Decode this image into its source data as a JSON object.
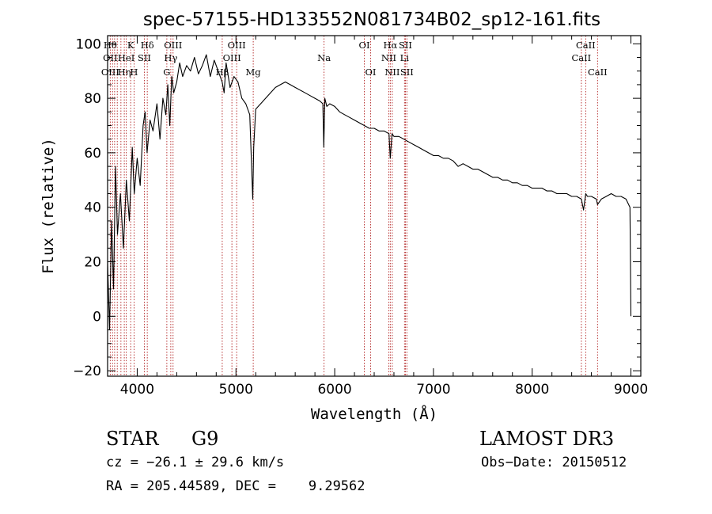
{
  "chart_data": {
    "type": "line",
    "title": "spec-57155-HD133552N081734B02_sp12-161.fits",
    "xlabel": "Wavelength (Å)",
    "ylabel": "Flux (relative)",
    "xlim": [
      3700,
      9100
    ],
    "ylim": [
      -22,
      103
    ],
    "xticks": [
      4000,
      5000,
      6000,
      7000,
      8000,
      9000
    ],
    "yticks": [
      -20,
      0,
      20,
      40,
      60,
      80,
      100
    ],
    "series": [
      {
        "name": "spectrum",
        "x": [
          3700,
          3720,
          3740,
          3760,
          3780,
          3800,
          3830,
          3860,
          3890,
          3920,
          3950,
          3970,
          4000,
          4030,
          4060,
          4080,
          4100,
          4130,
          4160,
          4200,
          4230,
          4260,
          4290,
          4310,
          4330,
          4350,
          4370,
          4400,
          4430,
          4460,
          4500,
          4540,
          4580,
          4620,
          4660,
          4700,
          4740,
          4780,
          4820,
          4860,
          4880,
          4900,
          4940,
          4980,
          5020,
          5060,
          5100,
          5140,
          5170,
          5180,
          5200,
          5250,
          5300,
          5350,
          5400,
          5450,
          5500,
          5550,
          5600,
          5650,
          5700,
          5750,
          5800,
          5850,
          5880,
          5890,
          5900,
          5920,
          5950,
          6000,
          6050,
          6100,
          6150,
          6200,
          6250,
          6300,
          6350,
          6400,
          6450,
          6500,
          6550,
          6563,
          6580,
          6600,
          6650,
          6700,
          6750,
          6800,
          6850,
          6900,
          6950,
          7000,
          7050,
          7100,
          7150,
          7200,
          7250,
          7300,
          7350,
          7400,
          7450,
          7500,
          7550,
          7600,
          7650,
          7700,
          7750,
          7800,
          7850,
          7900,
          7950,
          8000,
          8050,
          8100,
          8150,
          8200,
          8250,
          8300,
          8350,
          8400,
          8450,
          8498,
          8520,
          8542,
          8560,
          8600,
          8650,
          8662,
          8700,
          8750,
          8800,
          8850,
          8900,
          8950,
          8990,
          9000
        ],
        "values": [
          20,
          -5,
          35,
          10,
          55,
          30,
          45,
          25,
          50,
          35,
          62,
          45,
          58,
          48,
          70,
          75,
          60,
          72,
          68,
          78,
          65,
          80,
          74,
          85,
          70,
          88,
          82,
          86,
          93,
          88,
          92,
          90,
          95,
          89,
          92,
          96,
          88,
          94,
          90,
          86,
          82,
          93,
          84,
          88,
          86,
          80,
          78,
          74,
          43,
          62,
          76,
          78,
          80,
          82,
          84,
          85,
          86,
          85,
          84,
          83,
          82,
          81,
          80,
          79,
          78,
          62,
          80,
          77,
          78,
          77,
          75,
          74,
          73,
          72,
          71,
          70,
          69,
          69,
          68,
          68,
          67,
          58,
          67,
          66,
          66,
          65,
          64,
          63,
          62,
          61,
          60,
          59,
          59,
          58,
          58,
          57,
          55,
          56,
          55,
          54,
          54,
          53,
          52,
          51,
          51,
          50,
          50,
          49,
          49,
          48,
          48,
          47,
          47,
          47,
          46,
          46,
          45,
          45,
          45,
          44,
          44,
          43,
          39,
          45,
          44,
          44,
          43,
          41,
          43,
          44,
          45,
          44,
          44,
          43,
          40,
          0
        ]
      }
    ],
    "line_markers": [
      {
        "x": 3727,
        "upper": "Hθ",
        "mid": "OII",
        "lower": "OIII"
      },
      {
        "x": 3750,
        "upper": "",
        "mid": "",
        "lower": ""
      },
      {
        "x": 3771,
        "upper": "",
        "mid": "",
        "lower": ""
      },
      {
        "x": 3798,
        "upper": "",
        "mid": "",
        "lower": ""
      },
      {
        "x": 3835,
        "upper": "",
        "mid": "",
        "lower": ""
      },
      {
        "x": 3869,
        "upper": "",
        "mid": "",
        "lower": "Hη"
      },
      {
        "x": 3889,
        "upper": "",
        "mid": "HeI",
        "lower": ""
      },
      {
        "x": 3934,
        "upper": "K",
        "mid": "",
        "lower": ""
      },
      {
        "x": 3968,
        "upper": "",
        "mid": "",
        "lower": "H"
      },
      {
        "x": 4072,
        "upper": "",
        "mid": "SII",
        "lower": ""
      },
      {
        "x": 4102,
        "upper": "Hδ",
        "mid": "",
        "lower": ""
      },
      {
        "x": 4300,
        "upper": "",
        "mid": "",
        "lower": "G"
      },
      {
        "x": 4340,
        "upper": "",
        "mid": "Hγ",
        "lower": ""
      },
      {
        "x": 4363,
        "upper": "OIII",
        "mid": "",
        "lower": ""
      },
      {
        "x": 4861,
        "upper": "",
        "mid": "",
        "lower": "Hβ"
      },
      {
        "x": 4959,
        "upper": "",
        "mid": "OIII",
        "lower": ""
      },
      {
        "x": 5007,
        "upper": "OIII",
        "mid": "",
        "lower": ""
      },
      {
        "x": 5175,
        "upper": "",
        "mid": "",
        "lower": "Mg"
      },
      {
        "x": 5892,
        "upper": "",
        "mid": "Na",
        "lower": ""
      },
      {
        "x": 6300,
        "upper": "OI",
        "mid": "",
        "lower": ""
      },
      {
        "x": 6364,
        "upper": "",
        "mid": "",
        "lower": "OI"
      },
      {
        "x": 6548,
        "upper": "",
        "mid": "NII",
        "lower": ""
      },
      {
        "x": 6563,
        "upper": "Hα",
        "mid": "",
        "lower": ""
      },
      {
        "x": 6583,
        "upper": "",
        "mid": "",
        "lower": "NII"
      },
      {
        "x": 6707,
        "upper": "",
        "mid": "Li",
        "lower": ""
      },
      {
        "x": 6716,
        "upper": "SII",
        "mid": "",
        "lower": ""
      },
      {
        "x": 6731,
        "upper": "",
        "mid": "",
        "lower": "SII"
      },
      {
        "x": 8498,
        "upper": "",
        "mid": "CaII",
        "lower": ""
      },
      {
        "x": 8542,
        "upper": "CaII",
        "mid": "",
        "lower": ""
      },
      {
        "x": 8662,
        "upper": "",
        "mid": "",
        "lower": "CaII"
      }
    ]
  },
  "info": {
    "class_label": "STAR",
    "subclass": "G9",
    "survey": "LAMOST DR3",
    "cz": "cz = −26.1 ± 29.6 km/s",
    "obs_date": "Obs−Date: 20150512",
    "coords": "RA = 205.44589, DEC =    9.29562"
  },
  "colors": {
    "spectrum": "#000000",
    "marker": "#b22222",
    "axis": "#000000"
  }
}
